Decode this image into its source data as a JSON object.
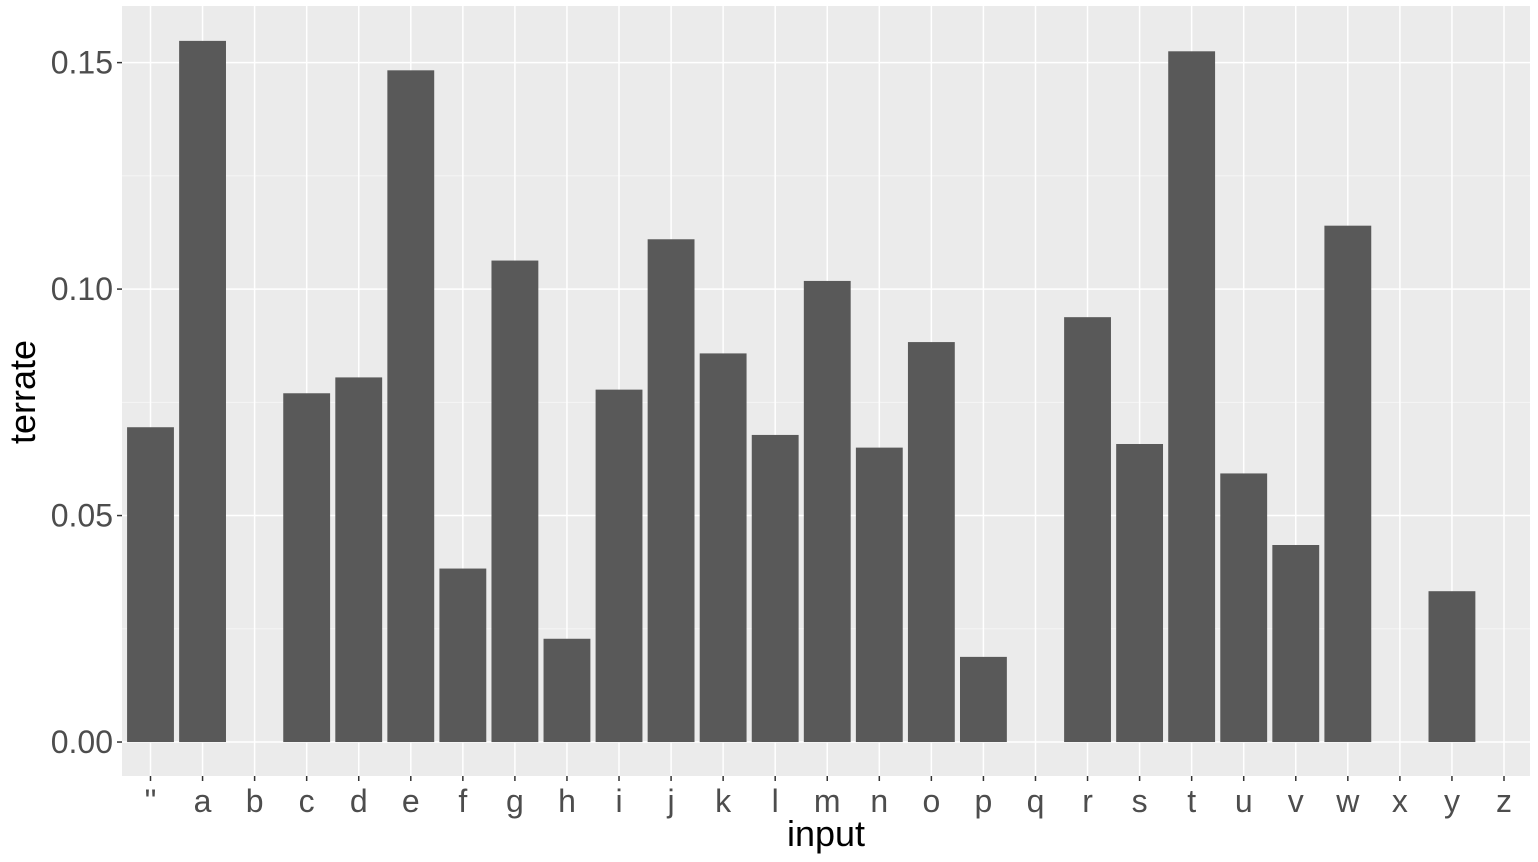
{
  "chart_data": {
    "type": "bar",
    "title": "",
    "xlabel": "input",
    "ylabel": "terrate",
    "categories": [
      "''",
      "a",
      "b",
      "c",
      "d",
      "e",
      "f",
      "g",
      "h",
      "i",
      "j",
      "k",
      "l",
      "m",
      "n",
      "o",
      "p",
      "q",
      "r",
      "s",
      "t",
      "u",
      "v",
      "w",
      "x",
      "y",
      "z"
    ],
    "values": [
      0.0695,
      0.1548,
      0,
      0.077,
      0.0805,
      0.1483,
      0.0383,
      0.1063,
      0.0228,
      0.0778,
      0.111,
      0.0858,
      0.0678,
      0.1018,
      0.065,
      0.0883,
      0.0188,
      0,
      0.0938,
      0.0658,
      0.1525,
      0.0593,
      0.0435,
      0.114,
      0,
      0.0333,
      0
    ],
    "ylim": [
      -0.0075,
      0.1625
    ],
    "y_ticks": [
      0.0,
      0.05,
      0.1,
      0.15
    ],
    "y_tick_labels": [
      "0.00",
      "0.05",
      "0.10",
      "0.15"
    ],
    "grid": true,
    "legend": "none",
    "colors": {
      "bar": "#595959",
      "panel_background": "#ebebeb",
      "grid_major": "#ffffff",
      "grid_minor": "#f5f5f5",
      "tick_text": "#4d4d4d",
      "tick_mark": "#333333",
      "axis_title": "#000000"
    }
  }
}
